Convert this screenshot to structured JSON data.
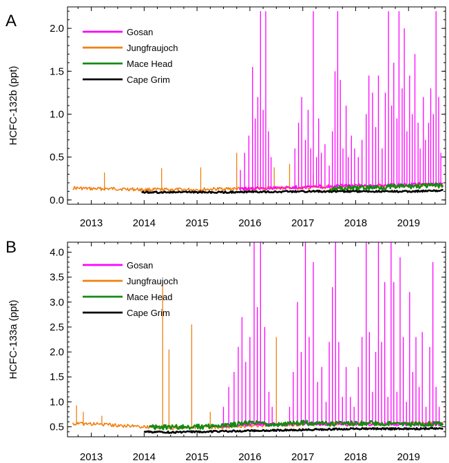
{
  "colors": {
    "Gosan": "#ff00ff",
    "Jungfraujoch": "#f07f0f",
    "Mace Head": "#138a13",
    "Cape Grim": "#000000"
  },
  "chart_data": [
    {
      "panel": "A",
      "type": "line",
      "ylabel": "HCFC-132b (ppt)",
      "xlabel": "",
      "xlim": [
        2012.55,
        2019.7
      ],
      "ylim": [
        -0.05,
        2.25
      ],
      "grid": false,
      "legend_position": "top-left",
      "x_ticks": [
        2013,
        2014,
        2015,
        2016,
        2017,
        2018,
        2019
      ],
      "x_tick_labels": [
        "2013",
        "2014",
        "2015",
        "2016",
        "2017",
        "2018",
        "2019"
      ],
      "y_ticks": [
        0.0,
        0.5,
        1.0,
        1.5,
        2.0
      ],
      "y_tick_labels": [
        "0.0",
        "0.5",
        "1.0",
        "1.5",
        "2.0"
      ],
      "series": [
        {
          "name": "Gosan",
          "baseline": [
            [
              2015.8,
              0.13
            ],
            [
              2016.5,
              0.14
            ],
            [
              2017.0,
              0.15
            ],
            [
              2017.5,
              0.16
            ],
            [
              2018.0,
              0.17
            ],
            [
              2018.5,
              0.17
            ],
            [
              2019.0,
              0.18
            ],
            [
              2019.65,
              0.19
            ]
          ],
          "spikes": [
            [
              2015.82,
              0.35
            ],
            [
              2015.9,
              0.55
            ],
            [
              2015.98,
              0.75
            ],
            [
              2016.05,
              1.55
            ],
            [
              2016.1,
              0.95
            ],
            [
              2016.15,
              1.2
            ],
            [
              2016.2,
              2.2
            ],
            [
              2016.25,
              1.05
            ],
            [
              2016.3,
              2.2
            ],
            [
              2016.35,
              0.8
            ],
            [
              2016.4,
              0.5
            ],
            [
              2016.85,
              0.6
            ],
            [
              2016.92,
              0.9
            ],
            [
              2016.98,
              1.2
            ],
            [
              2017.05,
              0.7
            ],
            [
              2017.1,
              1.05
            ],
            [
              2017.15,
              0.6
            ],
            [
              2017.2,
              2.2
            ],
            [
              2017.26,
              0.5
            ],
            [
              2017.3,
              0.95
            ],
            [
              2017.35,
              0.55
            ],
            [
              2017.42,
              0.65
            ],
            [
              2017.5,
              0.4
            ],
            [
              2017.56,
              0.8
            ],
            [
              2017.61,
              1.5
            ],
            [
              2017.66,
              2.2
            ],
            [
              2017.71,
              1.4
            ],
            [
              2017.76,
              0.6
            ],
            [
              2017.82,
              1.1
            ],
            [
              2017.86,
              0.5
            ],
            [
              2017.92,
              0.75
            ],
            [
              2017.98,
              0.6
            ],
            [
              2018.05,
              0.5
            ],
            [
              2018.12,
              0.7
            ],
            [
              2018.2,
              1.0
            ],
            [
              2018.25,
              1.45
            ],
            [
              2018.32,
              1.25
            ],
            [
              2018.38,
              0.85
            ],
            [
              2018.43,
              1.45
            ],
            [
              2018.5,
              0.6
            ],
            [
              2018.56,
              1.25
            ],
            [
              2018.62,
              2.2
            ],
            [
              2018.68,
              1.1
            ],
            [
              2018.72,
              1.6
            ],
            [
              2018.78,
              0.95
            ],
            [
              2018.82,
              2.2
            ],
            [
              2018.88,
              1.3
            ],
            [
              2018.92,
              2.0
            ],
            [
              2018.97,
              0.8
            ],
            [
              2019.02,
              1.45
            ],
            [
              2019.07,
              1.0
            ],
            [
              2019.12,
              1.7
            ],
            [
              2019.18,
              0.9
            ],
            [
              2019.22,
              0.6
            ],
            [
              2019.28,
              1.2
            ],
            [
              2019.32,
              0.7
            ],
            [
              2019.38,
              0.9
            ],
            [
              2019.42,
              1.3
            ],
            [
              2019.47,
              1.0
            ],
            [
              2019.52,
              2.2
            ],
            [
              2019.57,
              1.2
            ],
            [
              2019.61,
              0.55
            ]
          ]
        },
        {
          "name": "Jungfraujoch",
          "baseline": [
            [
              2012.65,
              0.14
            ],
            [
              2013.0,
              0.13
            ],
            [
              2013.5,
              0.13
            ],
            [
              2014.0,
              0.12
            ],
            [
              2014.5,
              0.12
            ],
            [
              2015.0,
              0.12
            ],
            [
              2015.5,
              0.13
            ],
            [
              2016.0,
              0.13
            ],
            [
              2016.5,
              0.14
            ],
            [
              2017.0,
              0.14
            ],
            [
              2017.5,
              0.15
            ],
            [
              2018.0,
              0.15
            ],
            [
              2018.5,
              0.16
            ],
            [
              2019.0,
              0.17
            ],
            [
              2019.65,
              0.18
            ]
          ],
          "spikes": [
            [
              2013.25,
              0.32
            ],
            [
              2014.33,
              0.37
            ],
            [
              2015.07,
              0.38
            ],
            [
              2015.75,
              0.55
            ],
            [
              2016.46,
              0.38
            ],
            [
              2016.75,
              0.42
            ],
            [
              2017.2,
              0.3
            ]
          ]
        },
        {
          "name": "Mace Head",
          "baseline": [
            [
              2017.5,
              0.13
            ],
            [
              2018.0,
              0.14
            ],
            [
              2018.5,
              0.15
            ],
            [
              2019.0,
              0.16
            ],
            [
              2019.65,
              0.17
            ]
          ],
          "spikes": []
        },
        {
          "name": "Cape Grim",
          "baseline": [
            [
              2013.95,
              0.09
            ],
            [
              2014.5,
              0.09
            ],
            [
              2015.0,
              0.09
            ],
            [
              2015.5,
              0.09
            ],
            [
              2016.0,
              0.095
            ],
            [
              2016.5,
              0.095
            ],
            [
              2017.0,
              0.1
            ],
            [
              2017.5,
              0.1
            ],
            [
              2018.0,
              0.1
            ],
            [
              2018.5,
              0.1
            ],
            [
              2019.0,
              0.1
            ],
            [
              2019.65,
              0.11
            ]
          ],
          "spikes": []
        }
      ]
    },
    {
      "panel": "B",
      "type": "line",
      "ylabel": "HCFC-133a (ppt)",
      "xlabel": "",
      "xlim": [
        2012.55,
        2019.7
      ],
      "ylim": [
        0.3,
        4.2
      ],
      "grid": false,
      "legend_position": "top-left",
      "x_ticks": [
        2013,
        2014,
        2015,
        2016,
        2017,
        2018,
        2019
      ],
      "x_tick_labels": [
        "2013",
        "2014",
        "2015",
        "2016",
        "2017",
        "2018",
        "2019"
      ],
      "y_ticks": [
        0.5,
        1.0,
        1.5,
        2.0,
        2.5,
        3.0,
        3.5,
        4.0
      ],
      "y_tick_labels": [
        "0.5",
        "1.0",
        "1.5",
        "2.0",
        "2.5",
        "3.0",
        "3.5",
        "4.0"
      ],
      "series": [
        {
          "name": "Gosan",
          "baseline": [
            [
              2015.45,
              0.52
            ],
            [
              2016.0,
              0.55
            ],
            [
              2016.5,
              0.55
            ],
            [
              2017.0,
              0.56
            ],
            [
              2017.5,
              0.55
            ],
            [
              2018.0,
              0.55
            ],
            [
              2018.5,
              0.55
            ],
            [
              2019.0,
              0.55
            ],
            [
              2019.65,
              0.55
            ]
          ],
          "spikes": [
            [
              2015.5,
              0.9
            ],
            [
              2015.6,
              1.3
            ],
            [
              2015.7,
              1.6
            ],
            [
              2015.78,
              2.1
            ],
            [
              2015.85,
              2.7
            ],
            [
              2015.92,
              1.8
            ],
            [
              2016.0,
              2.3
            ],
            [
              2016.08,
              4.2
            ],
            [
              2016.14,
              2.9
            ],
            [
              2016.2,
              4.2
            ],
            [
              2016.28,
              2.5
            ],
            [
              2016.36,
              1.2
            ],
            [
              2016.42,
              0.9
            ],
            [
              2016.75,
              0.9
            ],
            [
              2016.82,
              1.6
            ],
            [
              2016.9,
              3.0
            ],
            [
              2016.97,
              2.0
            ],
            [
              2017.05,
              4.2
            ],
            [
              2017.12,
              2.3
            ],
            [
              2017.2,
              3.8
            ],
            [
              2017.28,
              1.4
            ],
            [
              2017.36,
              1.7
            ],
            [
              2017.44,
              1.0
            ],
            [
              2017.5,
              2.2
            ],
            [
              2017.56,
              3.3
            ],
            [
              2017.62,
              4.2
            ],
            [
              2017.68,
              2.2
            ],
            [
              2017.75,
              1.1
            ],
            [
              2017.82,
              1.7
            ],
            [
              2017.9,
              1.1
            ],
            [
              2017.97,
              0.9
            ],
            [
              2018.05,
              1.7
            ],
            [
              2018.12,
              2.3
            ],
            [
              2018.2,
              4.2
            ],
            [
              2018.26,
              2.4
            ],
            [
              2018.32,
              1.2
            ],
            [
              2018.38,
              2.0
            ],
            [
              2018.43,
              4.2
            ],
            [
              2018.49,
              2.2
            ],
            [
              2018.55,
              3.4
            ],
            [
              2018.61,
              1.1
            ],
            [
              2018.67,
              4.2
            ],
            [
              2018.72,
              3.4
            ],
            [
              2018.78,
              1.2
            ],
            [
              2018.84,
              3.9
            ],
            [
              2018.9,
              2.3
            ],
            [
              2018.96,
              1.0
            ],
            [
              2019.02,
              3.2
            ],
            [
              2019.08,
              1.6
            ],
            [
              2019.14,
              2.3
            ],
            [
              2019.2,
              1.3
            ],
            [
              2019.26,
              2.4
            ],
            [
              2019.33,
              0.9
            ],
            [
              2019.4,
              2.1
            ],
            [
              2019.46,
              3.8
            ],
            [
              2019.52,
              1.3
            ],
            [
              2019.58,
              0.9
            ]
          ]
        },
        {
          "name": "Jungfraujoch",
          "baseline": [
            [
              2012.65,
              0.56
            ],
            [
              2013.0,
              0.56
            ],
            [
              2013.5,
              0.53
            ],
            [
              2014.0,
              0.5
            ],
            [
              2014.5,
              0.48
            ],
            [
              2015.0,
              0.49
            ],
            [
              2015.5,
              0.5
            ],
            [
              2016.0,
              0.52
            ],
            [
              2016.5,
              0.54
            ],
            [
              2017.0,
              0.55
            ],
            [
              2017.5,
              0.56
            ],
            [
              2018.0,
              0.56
            ],
            [
              2018.5,
              0.56
            ],
            [
              2019.0,
              0.57
            ],
            [
              2019.65,
              0.57
            ]
          ],
          "spikes": [
            [
              2012.72,
              0.93
            ],
            [
              2012.85,
              0.8
            ],
            [
              2013.2,
              0.72
            ],
            [
              2014.35,
              3.4
            ],
            [
              2014.47,
              2.05
            ],
            [
              2014.9,
              2.55
            ],
            [
              2015.25,
              0.8
            ],
            [
              2016.5,
              2.3
            ],
            [
              2016.82,
              0.65
            ]
          ]
        },
        {
          "name": "Mace Head",
          "baseline": [
            [
              2014.1,
              0.5
            ],
            [
              2014.5,
              0.49
            ],
            [
              2015.0,
              0.5
            ],
            [
              2015.5,
              0.52
            ],
            [
              2016.0,
              0.58
            ],
            [
              2016.5,
              0.55
            ],
            [
              2017.0,
              0.58
            ],
            [
              2017.5,
              0.56
            ],
            [
              2018.0,
              0.57
            ],
            [
              2018.5,
              0.57
            ],
            [
              2019.0,
              0.55
            ],
            [
              2019.65,
              0.56
            ]
          ],
          "spikes": []
        },
        {
          "name": "Cape Grim",
          "baseline": [
            [
              2014.0,
              0.4
            ],
            [
              2014.5,
              0.39
            ],
            [
              2015.0,
              0.4
            ],
            [
              2015.5,
              0.41
            ],
            [
              2016.0,
              0.42
            ],
            [
              2016.5,
              0.43
            ],
            [
              2017.0,
              0.44
            ],
            [
              2017.5,
              0.45
            ],
            [
              2018.0,
              0.46
            ],
            [
              2018.5,
              0.46
            ],
            [
              2019.0,
              0.46
            ],
            [
              2019.65,
              0.47
            ]
          ],
          "spikes": []
        }
      ]
    }
  ]
}
